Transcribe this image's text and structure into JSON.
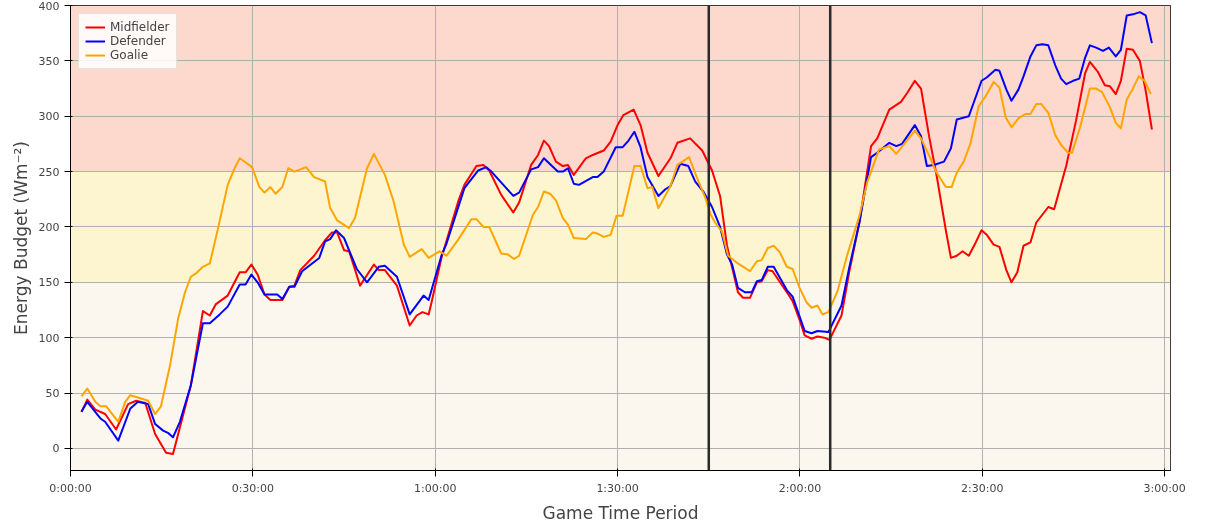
{
  "chart_data": {
    "type": "line",
    "xlabel": "Game Time Period",
    "ylabel": "Energy Budget (Wm⁻²)",
    "xlim": [
      0,
      3.016
    ],
    "ylim": [
      -20,
      400
    ],
    "xticks": [
      {
        "value": 0,
        "label": "0:00:00"
      },
      {
        "value": 0.5,
        "label": "0:30:00"
      },
      {
        "value": 1,
        "label": "1:00:00"
      },
      {
        "value": 1.5,
        "label": "1:30:00"
      },
      {
        "value": 2,
        "label": "2:00:00"
      },
      {
        "value": 2.5,
        "label": "2:30:00"
      },
      {
        "value": 3,
        "label": "3:00:00"
      }
    ],
    "yticks": [
      0,
      50,
      100,
      150,
      200,
      250,
      300,
      350,
      400
    ],
    "grid": true,
    "legend": "top left",
    "line_style": "solid",
    "bands": [
      {
        "axis": "y",
        "from": -20,
        "to": 150,
        "label": null,
        "color": "#fbf6ee"
      },
      {
        "axis": "y",
        "from": 150,
        "to": 250,
        "label": null,
        "color": "#fdf5d0"
      },
      {
        "axis": "y",
        "from": 250,
        "to": 400,
        "label": null,
        "color": "#fdd8cc"
      }
    ],
    "ref_lines": [
      {
        "axis": "x",
        "value": 1.75,
        "label": null,
        "color": "#2b2b2b"
      },
      {
        "axis": "x",
        "value": 2.083,
        "label": null,
        "color": "#2b2b2b"
      }
    ],
    "series": [
      {
        "name": "Midfielder",
        "color": "#ff0000",
        "x": [
          0.03,
          0.046,
          0.068,
          0.095,
          0.125,
          0.158,
          0.18,
          0.205,
          0.232,
          0.262,
          0.281,
          0.33,
          0.363,
          0.382,
          0.398,
          0.431,
          0.464,
          0.48,
          0.496,
          0.513,
          0.532,
          0.548,
          0.581,
          0.6,
          0.614,
          0.63,
          0.668,
          0.698,
          0.717,
          0.731,
          0.75,
          0.764,
          0.794,
          0.832,
          0.845,
          0.862,
          0.895,
          0.93,
          0.949,
          0.965,
          0.982,
          0.99,
          1.017,
          1.064,
          1.08,
          1.113,
          1.132,
          1.148,
          1.181,
          1.214,
          1.23,
          1.263,
          1.282,
          1.298,
          1.312,
          1.331,
          1.35,
          1.364,
          1.38,
          1.413,
          1.432,
          1.462,
          1.481,
          1.5,
          1.516,
          1.544,
          1.563,
          1.582,
          1.612,
          1.645,
          1.664,
          1.699,
          1.732,
          1.759,
          1.781,
          1.8,
          1.83,
          1.844,
          1.863,
          1.882,
          1.895,
          1.912,
          1.925,
          1.964,
          1.98,
          1.999,
          2.013,
          2.032,
          2.048,
          2.067,
          2.081,
          2.114,
          2.135,
          2.163,
          2.195,
          2.212,
          2.245,
          2.277,
          2.294,
          2.315,
          2.332,
          2.354,
          2.375,
          2.4,
          2.414,
          2.43,
          2.446,
          2.463,
          2.482,
          2.498,
          2.512,
          2.531,
          2.547,
          2.566,
          2.58,
          2.596,
          2.613,
          2.632,
          2.648,
          2.681,
          2.697,
          2.73,
          2.757,
          2.782,
          2.795,
          2.817,
          2.836,
          2.85,
          2.866,
          2.88,
          2.896,
          2.913,
          2.932,
          2.948,
          2.965
        ],
        "values": [
          33,
          44,
          35,
          31,
          17,
          40,
          43,
          41,
          13,
          -4,
          -5,
          57,
          124,
          120,
          130,
          138,
          159,
          159,
          166,
          157,
          139,
          134,
          134,
          146,
          147,
          161,
          174,
          188,
          195,
          195,
          179,
          178,
          147,
          166,
          161,
          161,
          147,
          111,
          120,
          123,
          121,
          132,
          172,
          224,
          238,
          255,
          256,
          251,
          229,
          213,
          222,
          256,
          265,
          278,
          273,
          259,
          255,
          256,
          247,
          262,
          265,
          269,
          277,
          292,
          301,
          306,
          292,
          267,
          246,
          262,
          276,
          280,
          269,
          251,
          228,
          183,
          141,
          136,
          136,
          150,
          151,
          161,
          160,
          141,
          133,
          116,
          102,
          99,
          101,
          100,
          98,
          120,
          159,
          204,
          273,
          280,
          306,
          313,
          321,
          332,
          325,
          282,
          246,
          197,
          172,
          174,
          178,
          174,
          186,
          197,
          193,
          184,
          182,
          161,
          150,
          159,
          183,
          186,
          204,
          218,
          216,
          255,
          296,
          339,
          349,
          340,
          328,
          327,
          320,
          332,
          361,
          360,
          350,
          323,
          288
        ]
      },
      {
        "name": "Defender",
        "color": "#0000ff",
        "x": [
          0.03,
          0.046,
          0.082,
          0.095,
          0.131,
          0.164,
          0.185,
          0.213,
          0.232,
          0.254,
          0.267,
          0.281,
          0.3,
          0.33,
          0.363,
          0.382,
          0.409,
          0.431,
          0.464,
          0.48,
          0.496,
          0.513,
          0.532,
          0.567,
          0.581,
          0.6,
          0.614,
          0.635,
          0.682,
          0.698,
          0.712,
          0.728,
          0.75,
          0.785,
          0.813,
          0.845,
          0.862,
          0.895,
          0.93,
          0.968,
          0.982,
          1.017,
          1.031,
          1.08,
          1.118,
          1.14,
          1.154,
          1.214,
          1.23,
          1.263,
          1.282,
          1.298,
          1.336,
          1.35,
          1.364,
          1.38,
          1.394,
          1.432,
          1.445,
          1.462,
          1.495,
          1.514,
          1.53,
          1.546,
          1.563,
          1.582,
          1.612,
          1.631,
          1.645,
          1.672,
          1.694,
          1.713,
          1.735,
          1.759,
          1.781,
          1.8,
          1.814,
          1.83,
          1.849,
          1.868,
          1.882,
          1.895,
          1.912,
          1.928,
          1.964,
          1.98,
          2.013,
          2.032,
          2.048,
          2.078,
          2.114,
          2.135,
          2.163,
          2.195,
          2.212,
          2.245,
          2.264,
          2.28,
          2.315,
          2.332,
          2.348,
          2.367,
          2.395,
          2.414,
          2.43,
          2.463,
          2.498,
          2.512,
          2.536,
          2.547,
          2.566,
          2.58,
          2.599,
          2.613,
          2.632,
          2.648,
          2.665,
          2.681,
          2.7,
          2.716,
          2.73,
          2.749,
          2.766,
          2.782,
          2.795,
          2.812,
          2.831,
          2.847,
          2.866,
          2.88,
          2.896,
          2.913,
          2.932,
          2.948,
          2.965
        ],
        "values": [
          33,
          42,
          27,
          24,
          7,
          36,
          42,
          40,
          22,
          16,
          14,
          10,
          24,
          57,
          113,
          113,
          121,
          128,
          148,
          148,
          157,
          150,
          139,
          139,
          135,
          146,
          146,
          160,
          172,
          187,
          189,
          197,
          190,
          162,
          150,
          164,
          165,
          155,
          121,
          138,
          134,
          174,
          185,
          235,
          251,
          254,
          250,
          228,
          231,
          252,
          254,
          262,
          250,
          250,
          253,
          239,
          238,
          245,
          245,
          250,
          272,
          272,
          278,
          286,
          272,
          245,
          228,
          234,
          237,
          257,
          255,
          241,
          232,
          218,
          200,
          175,
          166,
          145,
          141,
          141,
          151,
          152,
          164,
          164,
          143,
          137,
          106,
          104,
          106,
          105,
          129,
          163,
          204,
          263,
          267,
          276,
          273,
          275,
          292,
          282,
          255,
          256,
          259,
          271,
          297,
          300,
          332,
          335,
          342,
          341,
          324,
          314,
          324,
          336,
          354,
          364,
          365,
          364,
          346,
          334,
          329,
          332,
          334,
          353,
          364,
          362,
          359,
          362,
          354,
          360,
          391,
          392,
          394,
          391,
          366
        ]
      },
      {
        "name": "Goalie",
        "color": "#ffa500",
        "x": [
          0.03,
          0.046,
          0.068,
          0.082,
          0.098,
          0.131,
          0.15,
          0.164,
          0.185,
          0.213,
          0.232,
          0.248,
          0.273,
          0.295,
          0.314,
          0.33,
          0.344,
          0.363,
          0.382,
          0.404,
          0.431,
          0.45,
          0.464,
          0.494,
          0.499,
          0.518,
          0.532,
          0.548,
          0.562,
          0.581,
          0.597,
          0.614,
          0.646,
          0.668,
          0.698,
          0.712,
          0.731,
          0.764,
          0.78,
          0.813,
          0.832,
          0.862,
          0.886,
          0.914,
          0.93,
          0.963,
          0.982,
          1.012,
          1.031,
          1.064,
          1.099,
          1.113,
          1.132,
          1.148,
          1.181,
          1.2,
          1.216,
          1.23,
          1.268,
          1.282,
          1.298,
          1.315,
          1.331,
          1.35,
          1.364,
          1.38,
          1.413,
          1.432,
          1.445,
          1.462,
          1.481,
          1.497,
          1.514,
          1.546,
          1.563,
          1.582,
          1.595,
          1.612,
          1.645,
          1.664,
          1.696,
          1.718,
          1.74,
          1.754,
          1.767,
          1.786,
          1.803,
          1.83,
          1.863,
          1.882,
          1.895,
          1.912,
          1.928,
          1.945,
          1.964,
          1.98,
          1.999,
          2.018,
          2.032,
          2.048,
          2.062,
          2.078,
          2.103,
          2.13,
          2.163,
          2.185,
          2.217,
          2.245,
          2.264,
          2.315,
          2.332,
          2.359,
          2.373,
          2.4,
          2.416,
          2.43,
          2.449,
          2.468,
          2.49,
          2.509,
          2.531,
          2.547,
          2.564,
          2.58,
          2.599,
          2.618,
          2.632,
          2.648,
          2.662,
          2.681,
          2.7,
          2.716,
          2.735,
          2.746,
          2.768,
          2.782,
          2.795,
          2.812,
          2.828,
          2.85,
          2.866,
          2.88,
          2.896,
          2.913,
          2.929,
          2.945,
          2.962
        ],
        "values": [
          47,
          54,
          42,
          38,
          38,
          24,
          42,
          48,
          46,
          43,
          31,
          38,
          75,
          117,
          141,
          155,
          158,
          164,
          167,
          198,
          238,
          253,
          262,
          255,
          253,
          236,
          231,
          236,
          230,
          236,
          253,
          250,
          254,
          245,
          241,
          217,
          206,
          199,
          208,
          253,
          266,
          247,
          223,
          184,
          173,
          180,
          172,
          178,
          174,
          189,
          207,
          207,
          200,
          200,
          176,
          175,
          171,
          174,
          211,
          218,
          232,
          230,
          224,
          208,
          202,
          190,
          189,
          195,
          194,
          191,
          193,
          210,
          210,
          255,
          255,
          235,
          236,
          217,
          237,
          256,
          263,
          244,
          227,
          212,
          204,
          196,
          174,
          167,
          160,
          169,
          170,
          181,
          183,
          177,
          164,
          162,
          145,
          132,
          127,
          129,
          121,
          123,
          142,
          175,
          210,
          241,
          270,
          273,
          266,
          287,
          280,
          261,
          250,
          236,
          236,
          249,
          259,
          276,
          309,
          318,
          331,
          326,
          299,
          290,
          298,
          302,
          302,
          311,
          311,
          303,
          283,
          274,
          267,
          267,
          290,
          308,
          325,
          325,
          322,
          308,
          294,
          289,
          315,
          325,
          336,
          332,
          320
        ]
      }
    ]
  }
}
